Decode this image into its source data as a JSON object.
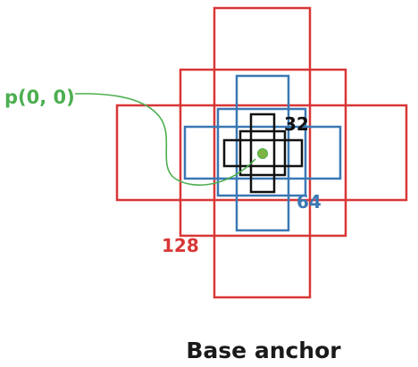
{
  "title": "Base anchor",
  "origin_label": "p(0, 0)",
  "groups": [
    {
      "size_label": "32",
      "color": "#111111"
    },
    {
      "size_label": "64",
      "color": "#3a78b5"
    },
    {
      "size_label": "128",
      "color": "#d93636"
    }
  ],
  "origin_color": "#4caf50",
  "point_color": "#7cb342"
}
